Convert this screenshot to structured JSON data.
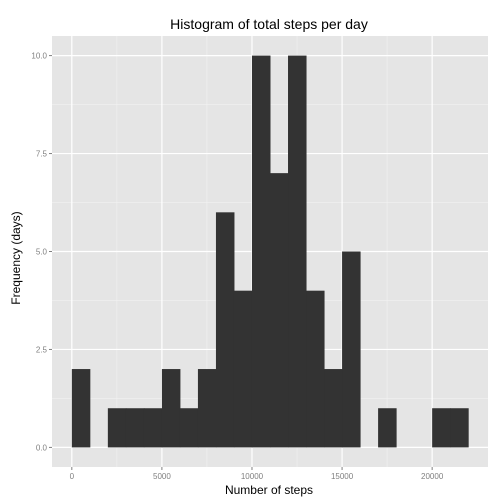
{
  "chart_data": {
    "type": "bar",
    "title": "Histogram of total steps per day",
    "xlabel": "Number of steps",
    "ylabel": "Frequency (days)",
    "bin_width": 1000,
    "bins": [
      {
        "start": 0,
        "end": 1000,
        "count": 2
      },
      {
        "start": 1000,
        "end": 2000,
        "count": 0
      },
      {
        "start": 2000,
        "end": 3000,
        "count": 1
      },
      {
        "start": 3000,
        "end": 4000,
        "count": 1
      },
      {
        "start": 4000,
        "end": 5000,
        "count": 1
      },
      {
        "start": 5000,
        "end": 6000,
        "count": 2
      },
      {
        "start": 6000,
        "end": 7000,
        "count": 1
      },
      {
        "start": 7000,
        "end": 8000,
        "count": 2
      },
      {
        "start": 8000,
        "end": 9000,
        "count": 6
      },
      {
        "start": 9000,
        "end": 10000,
        "count": 4
      },
      {
        "start": 10000,
        "end": 11000,
        "count": 10
      },
      {
        "start": 11000,
        "end": 12000,
        "count": 7
      },
      {
        "start": 12000,
        "end": 13000,
        "count": 10
      },
      {
        "start": 13000,
        "end": 14000,
        "count": 4
      },
      {
        "start": 14000,
        "end": 15000,
        "count": 2
      },
      {
        "start": 15000,
        "end": 16000,
        "count": 5
      },
      {
        "start": 16000,
        "end": 17000,
        "count": 0
      },
      {
        "start": 17000,
        "end": 18000,
        "count": 1
      },
      {
        "start": 18000,
        "end": 19000,
        "count": 0
      },
      {
        "start": 19000,
        "end": 20000,
        "count": 0
      },
      {
        "start": 20000,
        "end": 21000,
        "count": 1
      },
      {
        "start": 21000,
        "end": 22000,
        "count": 1
      }
    ],
    "xlim": [
      -1100,
      23100
    ],
    "ylim": [
      -0.5,
      10.5
    ],
    "x_ticks": [
      {
        "value": 0,
        "label": "0"
      },
      {
        "value": 5000,
        "label": "5000"
      },
      {
        "value": 10000,
        "label": "10000"
      },
      {
        "value": 15000,
        "label": "15000"
      },
      {
        "value": 20000,
        "label": "20000"
      }
    ],
    "y_ticks": [
      {
        "value": 0,
        "label": "0.0"
      },
      {
        "value": 2.5,
        "label": "2.5"
      },
      {
        "value": 5,
        "label": "5.0"
      },
      {
        "value": 7.5,
        "label": "7.5"
      },
      {
        "value": 10,
        "label": "10.0"
      }
    ],
    "grid": true,
    "legend": "none",
    "colors": {
      "panel": "#E5E5E5",
      "grid_major": "#FFFFFF",
      "grid_minor": "#F2F2F2",
      "bar": "#333333",
      "tick_label": "#7F7F7F"
    }
  }
}
